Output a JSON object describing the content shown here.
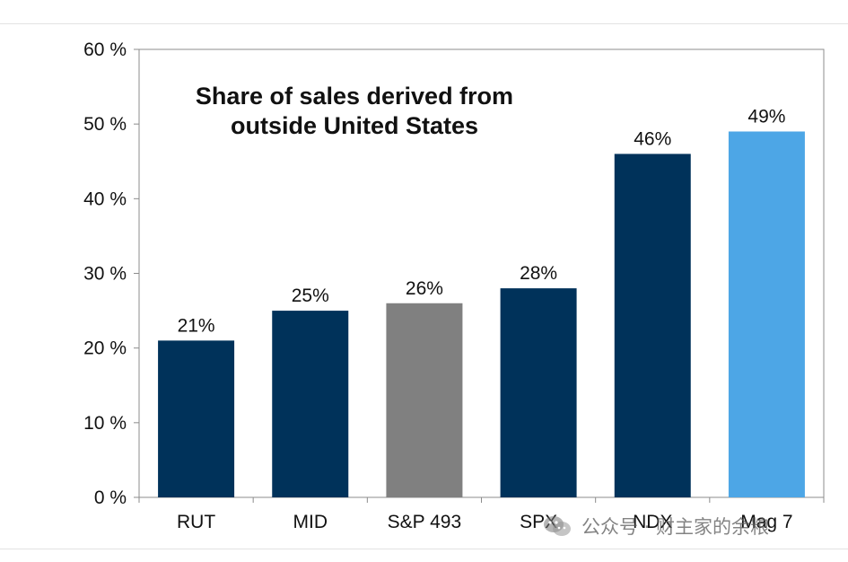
{
  "chart_data": {
    "type": "bar",
    "title_lines": [
      "Share of sales derived from",
      "outside United States"
    ],
    "categories": [
      "RUT",
      "MID",
      "S&P 493",
      "SPX",
      "NDX",
      "Mag 7"
    ],
    "values": [
      21,
      25,
      26,
      28,
      46,
      49
    ],
    "value_labels": [
      "21%",
      "25%",
      "26%",
      "28%",
      "46%",
      "49%"
    ],
    "bar_colors": [
      "#00325a",
      "#00325a",
      "#808080",
      "#00325a",
      "#00325a",
      "#4da6e6"
    ],
    "ylim": [
      0,
      60
    ],
    "y_ticks": [
      0,
      10,
      20,
      30,
      40,
      50,
      60
    ],
    "y_tick_labels": [
      "0 %",
      "10 %",
      "20 %",
      "30 %",
      "40 %",
      "50 %",
      "60 %"
    ],
    "xlabel": "",
    "ylabel": "",
    "grid": false,
    "legend": "none"
  },
  "watermark": {
    "text": "公众号 · 财主家的余粮",
    "icon": "wechat-logo-icon"
  }
}
